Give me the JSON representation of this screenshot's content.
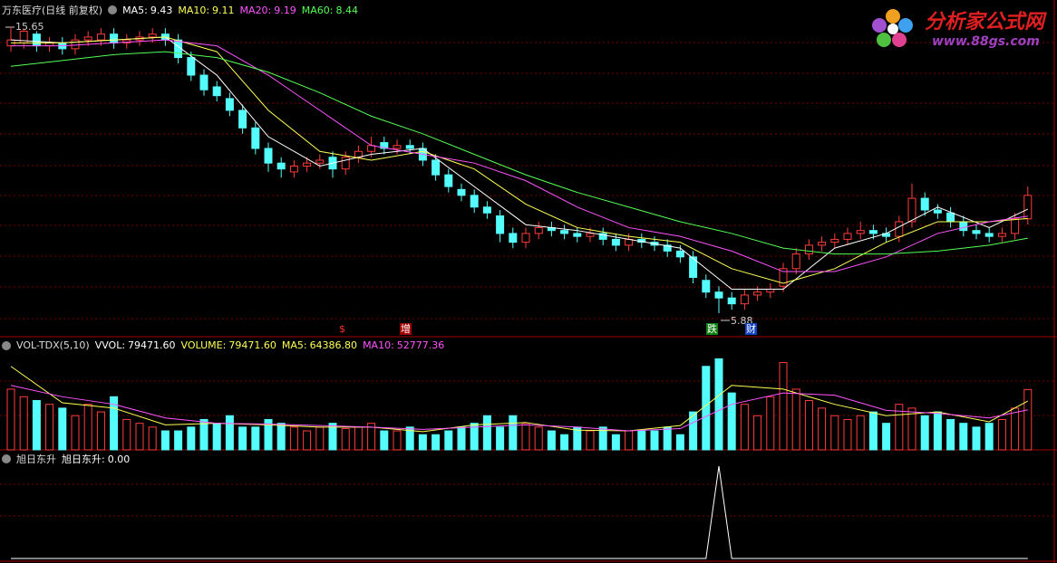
{
  "chart_data": [
    {
      "type": "candlestick",
      "title": "万东医疗(日线 前复权)",
      "up_color": "#ff3c3c",
      "down_color": "#54fcfc",
      "ylim": [
        5.14,
        16.1
      ],
      "open": [
        15.0,
        15.1,
        15.4,
        15.0,
        15.1,
        14.9,
        15.2,
        15.2,
        15.4,
        15.1,
        15.2,
        15.3,
        15.4,
        15.2,
        14.6,
        14.0,
        13.6,
        13.2,
        12.8,
        12.2,
        11.5,
        11.0,
        10.7,
        10.9,
        11.0,
        11.2,
        10.8,
        11.2,
        11.4,
        11.7,
        11.5,
        11.6,
        11.5,
        11.1,
        10.6,
        10.1,
        9.9,
        9.5,
        9.2,
        8.6,
        8.3,
        8.6,
        8.8,
        8.7,
        8.6,
        8.5,
        8.6,
        8.4,
        8.2,
        8.4,
        8.3,
        8.2,
        8.0,
        7.8,
        7.0,
        6.6,
        6.4,
        6.2,
        6.5,
        6.6,
        6.8,
        7.4,
        7.9,
        8.2,
        8.3,
        8.4,
        8.6,
        8.7,
        8.6,
        8.5,
        9.0,
        9.8,
        9.4,
        9.3,
        9.0,
        8.7,
        8.6,
        8.5,
        8.6,
        9.1
      ],
      "high": [
        15.65,
        15.6,
        15.5,
        15.3,
        15.3,
        15.4,
        15.5,
        15.6,
        15.6,
        15.4,
        15.5,
        15.6,
        15.6,
        15.4,
        14.8,
        14.2,
        13.8,
        13.4,
        13.0,
        12.4,
        11.7,
        11.2,
        11.1,
        11.2,
        11.3,
        11.4,
        11.4,
        11.6,
        11.9,
        11.9,
        11.8,
        11.8,
        11.7,
        11.3,
        10.8,
        10.3,
        10.1,
        9.7,
        9.4,
        8.8,
        8.8,
        9.0,
        9.0,
        8.9,
        8.8,
        8.8,
        8.8,
        8.6,
        8.6,
        8.6,
        8.5,
        8.4,
        8.2,
        8.0,
        7.2,
        6.8,
        6.6,
        6.7,
        6.8,
        6.9,
        7.6,
        8.1,
        8.4,
        8.5,
        8.6,
        8.8,
        9.0,
        8.9,
        8.8,
        9.2,
        10.3,
        10.0,
        9.6,
        9.5,
        9.2,
        8.9,
        8.8,
        8.8,
        9.3,
        10.2
      ],
      "low": [
        14.8,
        14.9,
        14.8,
        14.8,
        14.7,
        14.7,
        15.0,
        15.0,
        14.9,
        14.9,
        15.0,
        15.1,
        15.0,
        14.4,
        13.8,
        13.3,
        13.1,
        12.6,
        12.0,
        11.3,
        10.7,
        10.5,
        10.5,
        10.7,
        10.8,
        10.5,
        10.6,
        11.0,
        11.2,
        11.3,
        11.3,
        11.3,
        10.9,
        10.4,
        10.0,
        9.7,
        9.3,
        9.1,
        8.3,
        8.1,
        8.1,
        8.4,
        8.5,
        8.4,
        8.3,
        8.3,
        8.2,
        8.0,
        8.0,
        8.1,
        8.0,
        7.8,
        7.6,
        6.9,
        6.4,
        5.88,
        6.0,
        6.0,
        6.3,
        6.4,
        6.6,
        7.2,
        7.7,
        8.0,
        8.1,
        8.2,
        8.4,
        8.4,
        8.3,
        8.3,
        8.8,
        9.2,
        9.1,
        8.8,
        8.5,
        8.4,
        8.3,
        8.3,
        8.4,
        8.9
      ],
      "close": [
        15.2,
        15.5,
        15.0,
        15.1,
        14.9,
        15.2,
        15.3,
        15.4,
        15.1,
        15.2,
        15.3,
        15.4,
        15.2,
        14.6,
        14.0,
        13.5,
        13.3,
        12.8,
        12.2,
        11.5,
        11.0,
        10.8,
        10.9,
        11.0,
        11.1,
        10.8,
        11.2,
        11.4,
        11.6,
        11.5,
        11.6,
        11.5,
        11.1,
        10.6,
        10.2,
        9.9,
        9.5,
        9.3,
        8.6,
        8.3,
        8.6,
        8.8,
        8.7,
        8.6,
        8.5,
        8.6,
        8.4,
        8.2,
        8.4,
        8.3,
        8.2,
        8.0,
        7.8,
        7.1,
        6.6,
        6.4,
        6.2,
        6.5,
        6.6,
        6.7,
        7.4,
        7.9,
        8.2,
        8.3,
        8.4,
        8.6,
        8.7,
        8.6,
        8.5,
        9.0,
        9.8,
        9.4,
        9.3,
        9.0,
        8.7,
        8.6,
        8.5,
        8.6,
        9.1,
        9.9
      ],
      "series": [
        {
          "name": "MA5:",
          "color": "#ffffff",
          "x": [
            0,
            4,
            8,
            12,
            16,
            20,
            24,
            28,
            32,
            36,
            40,
            44,
            48,
            52,
            56,
            60,
            64,
            68,
            72,
            76,
            79
          ],
          "values": [
            15.2,
            15.1,
            15.2,
            15.3,
            14.0,
            11.9,
            10.9,
            11.3,
            11.5,
            10.2,
            8.9,
            8.7,
            8.4,
            8.1,
            6.7,
            6.7,
            8.1,
            8.6,
            9.5,
            8.8,
            9.43
          ]
        },
        {
          "name": "MA10:",
          "color": "#ffff54",
          "x": [
            0,
            4,
            8,
            12,
            16,
            20,
            24,
            28,
            32,
            36,
            40,
            44,
            48,
            52,
            56,
            60,
            64,
            68,
            72,
            76,
            79
          ],
          "values": [
            15.1,
            15.1,
            15.2,
            15.3,
            14.8,
            12.8,
            11.4,
            11.1,
            11.4,
            10.8,
            9.6,
            8.8,
            8.5,
            8.3,
            7.4,
            6.9,
            7.4,
            8.3,
            9.0,
            9.0,
            9.11
          ]
        },
        {
          "name": "MA20:",
          "color": "#ff54ff",
          "x": [
            0,
            4,
            8,
            12,
            16,
            20,
            24,
            28,
            32,
            36,
            40,
            44,
            48,
            52,
            56,
            60,
            64,
            68,
            72,
            76,
            79
          ],
          "values": [
            15.0,
            15.0,
            15.1,
            15.2,
            15.0,
            14.0,
            12.8,
            11.6,
            11.3,
            11.0,
            10.4,
            9.5,
            8.8,
            8.5,
            8.0,
            7.3,
            7.3,
            7.8,
            8.6,
            9.0,
            9.19
          ]
        },
        {
          "name": "MA60:",
          "color": "#54ff54",
          "x": [
            0,
            4,
            8,
            12,
            16,
            20,
            24,
            28,
            32,
            36,
            40,
            44,
            48,
            52,
            56,
            60,
            64,
            68,
            72,
            76,
            79
          ],
          "values": [
            14.3,
            14.5,
            14.7,
            14.8,
            14.6,
            14.1,
            13.4,
            12.6,
            12.0,
            11.3,
            10.6,
            10.0,
            9.5,
            9.0,
            8.6,
            8.1,
            7.9,
            7.9,
            8.0,
            8.2,
            8.44
          ]
        }
      ],
      "events": [
        "$",
        "增",
        "跌",
        "财"
      ]
    },
    {
      "type": "bar",
      "title": "VOL-TDX(5,10)",
      "ylim": [
        0,
        130000
      ],
      "values": [
        80000,
        70000,
        65000,
        60000,
        55000,
        45000,
        60000,
        50000,
        70000,
        40000,
        35000,
        30000,
        25000,
        25000,
        30000,
        40000,
        35000,
        45000,
        30000,
        30000,
        40000,
        35000,
        30000,
        25000,
        30000,
        35000,
        28000,
        30000,
        35000,
        25000,
        25000,
        30000,
        20000,
        20000,
        25000,
        30000,
        35000,
        45000,
        30000,
        45000,
        35000,
        30000,
        25000,
        20000,
        30000,
        25000,
        30000,
        20000,
        25000,
        25000,
        25000,
        30000,
        20000,
        50000,
        110000,
        120000,
        75000,
        60000,
        45000,
        70000,
        115000,
        80000,
        65000,
        55000,
        45000,
        40000,
        45000,
        50000,
        35000,
        60000,
        55000,
        45000,
        50000,
        40000,
        35000,
        30000,
        35000,
        40000,
        55000,
        79471.6
      ],
      "series": [
        {
          "name": "MA5:",
          "color": "#ffff54",
          "x": [
            0,
            4,
            8,
            12,
            16,
            20,
            24,
            28,
            32,
            36,
            40,
            44,
            48,
            52,
            56,
            60,
            64,
            68,
            72,
            76,
            79
          ],
          "values": [
            110000,
            62000,
            55000,
            33000,
            35000,
            33000,
            30000,
            30000,
            24000,
            33000,
            36000,
            26000,
            25000,
            32000,
            85000,
            80000,
            60000,
            45000,
            50000,
            37000,
            64386.8
          ],
          "value_label": "64386.80"
        },
        {
          "name": "MA10:",
          "color": "#ff54ff",
          "x": [
            0,
            4,
            8,
            12,
            16,
            20,
            24,
            28,
            32,
            36,
            40,
            44,
            48,
            52,
            56,
            60,
            64,
            68,
            72,
            76,
            79
          ],
          "values": [
            85000,
            70000,
            60000,
            42000,
            35000,
            34000,
            32000,
            30000,
            27000,
            30000,
            33000,
            30000,
            25000,
            28000,
            60000,
            75000,
            72000,
            52000,
            48000,
            42000,
            52777.36
          ],
          "value_label": "52777.36"
        }
      ],
      "readouts": [
        {
          "name": "VVOL:",
          "value": 79471.6,
          "label": "79471.60",
          "color": "#ffffff"
        },
        {
          "name": "VOLUME:",
          "value": 79471.6,
          "label": "79471.60",
          "color": "#ffff54"
        }
      ]
    },
    {
      "type": "line",
      "title": "旭日东升",
      "ylim": [
        0,
        1
      ],
      "series": [
        {
          "name": "旭日东升:",
          "color": "#ffffff",
          "values": [
            0,
            0,
            0,
            0,
            0,
            0,
            0,
            0,
            0,
            0,
            0,
            0,
            0,
            0,
            0,
            0,
            0,
            0,
            0,
            0,
            0,
            0,
            0,
            0,
            0,
            0,
            0,
            0,
            0,
            0,
            0,
            0,
            0,
            0,
            0,
            0,
            0,
            0,
            0,
            0,
            0,
            0,
            0,
            0,
            0,
            0,
            0,
            0,
            0,
            0,
            0,
            0,
            0,
            0,
            0,
            1,
            0,
            0,
            0,
            0,
            0,
            0,
            0,
            0,
            0,
            0,
            0,
            0,
            0,
            0,
            0,
            0,
            0,
            0,
            0,
            0,
            0,
            0,
            0,
            0
          ]
        }
      ],
      "readouts": [
        {
          "value": 0,
          "label": "0.00"
        }
      ]
    }
  ],
  "watermark": {
    "title": "分析家公式网",
    "url": "www.88gs.com"
  }
}
